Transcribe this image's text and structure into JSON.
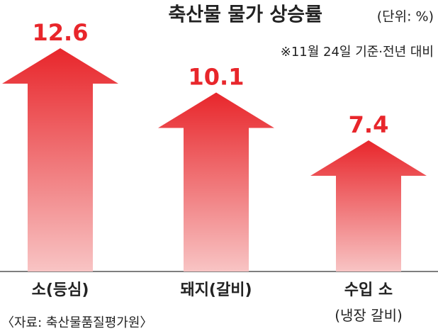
{
  "chart_data": {
    "type": "bar",
    "title": "축산물 물가 상승률",
    "unit": "(단위: %)",
    "subtitle": "※11월 24일 기준·전년 대비",
    "source": "〈자료: 축산물품질평가원〉",
    "categories": [
      "소(등심)",
      "돼지(갈비)",
      "수입 소\n(냉장 갈비)"
    ],
    "values": [
      12.6,
      10.1,
      7.4
    ],
    "color": "#e8262b"
  }
}
